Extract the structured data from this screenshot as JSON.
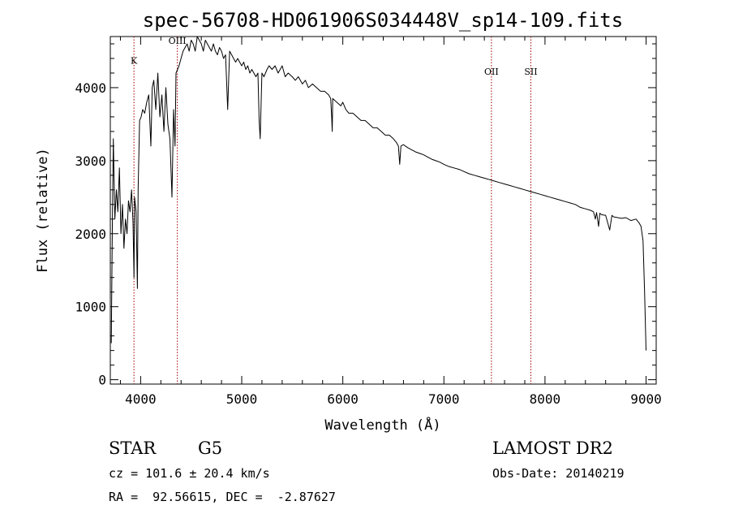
{
  "chart_data": {
    "type": "line",
    "title": "spec-56708-HD061906S034448V_sp14-109.fits",
    "xlabel": "Wavelength (Å)",
    "ylabel": "Flux (relative)",
    "xlim": [
      3700,
      9100
    ],
    "ylim": [
      -60,
      4700
    ],
    "x_ticks": [
      4000,
      5000,
      6000,
      7000,
      8000,
      9000
    ],
    "y_ticks": [
      0,
      1000,
      2000,
      3000,
      4000
    ],
    "grid": false,
    "lines": [
      {
        "label": "K",
        "x": 3934,
        "label_level": 4330
      },
      {
        "label": "OIII",
        "x": 4363,
        "label_level": 4600
      },
      {
        "label": "OII",
        "x": 7470,
        "label_level": 4180
      },
      {
        "label": "SII",
        "x": 7860,
        "label_level": 4180
      }
    ],
    "series": [
      {
        "x": [
          3710,
          3720,
          3730,
          3745,
          3760,
          3775,
          3790,
          3805,
          3820,
          3835,
          3850,
          3865,
          3880,
          3895,
          3910,
          3925,
          3934,
          3940,
          3955,
          3968,
          3975,
          3990,
          4005,
          4020,
          4040,
          4060,
          4080,
          4101,
          4115,
          4130,
          4150,
          4170,
          4190,
          4210,
          4230,
          4250,
          4270,
          4290,
          4310,
          4326,
          4340,
          4350,
          4365,
          4380,
          4400,
          4420,
          4440,
          4460,
          4480,
          4500,
          4520,
          4540,
          4560,
          4580,
          4600,
          4620,
          4640,
          4660,
          4680,
          4700,
          4720,
          4740,
          4760,
          4780,
          4800,
          4820,
          4840,
          4861,
          4880,
          4900,
          4920,
          4940,
          4960,
          4980,
          5000,
          5020,
          5040,
          5060,
          5080,
          5100,
          5120,
          5140,
          5160,
          5172,
          5183,
          5200,
          5220,
          5250,
          5270,
          5300,
          5330,
          5360,
          5400,
          5430,
          5460,
          5500,
          5530,
          5560,
          5600,
          5630,
          5660,
          5700,
          5740,
          5780,
          5820,
          5860,
          5880,
          5890,
          5895,
          5900,
          5940,
          5980,
          6000,
          6030,
          6060,
          6100,
          6140,
          6180,
          6220,
          6260,
          6300,
          6340,
          6380,
          6420,
          6460,
          6500,
          6530,
          6550,
          6563,
          6575,
          6600,
          6640,
          6680,
          6720,
          6760,
          6800,
          6840,
          6880,
          6920,
          6960,
          7000,
          7050,
          7100,
          7150,
          7200,
          7250,
          7300,
          7350,
          7400,
          7450,
          7500,
          7550,
          7600,
          7650,
          7700,
          7750,
          7800,
          7850,
          7900,
          7950,
          8000,
          8050,
          8100,
          8150,
          8200,
          8250,
          8300,
          8350,
          8400,
          8450,
          8480,
          8498,
          8510,
          8530,
          8542,
          8560,
          8600,
          8640,
          8662,
          8680,
          8720,
          8760,
          8800,
          8850,
          8900,
          8930,
          8950,
          8970,
          8985,
          9000
        ],
        "y": [
          500,
          2100,
          3300,
          2200,
          2600,
          2300,
          2900,
          2000,
          2400,
          1800,
          2200,
          2000,
          2450,
          2300,
          2600,
          2150,
          1400,
          2500,
          2300,
          1250,
          2600,
          3550,
          3600,
          3700,
          3650,
          3800,
          3900,
          3200,
          4000,
          4100,
          3700,
          4200,
          3600,
          3900,
          3400,
          4000,
          3500,
          3300,
          2500,
          3700,
          3200,
          4200,
          4250,
          4300,
          4400,
          4500,
          4550,
          4600,
          4500,
          4650,
          4600,
          4500,
          4700,
          4650,
          4600,
          4500,
          4650,
          4600,
          4550,
          4500,
          4600,
          4500,
          4450,
          4550,
          4500,
          4400,
          4450,
          3700,
          4500,
          4450,
          4400,
          4350,
          4400,
          4350,
          4300,
          4350,
          4250,
          4300,
          4200,
          4250,
          4200,
          4150,
          4200,
          3550,
          3300,
          4200,
          4150,
          4250,
          4300,
          4250,
          4300,
          4200,
          4300,
          4150,
          4200,
          4150,
          4100,
          4150,
          4050,
          4100,
          4000,
          4050,
          4000,
          3950,
          3950,
          3900,
          3850,
          3600,
          3400,
          3850,
          3800,
          3750,
          3800,
          3700,
          3650,
          3650,
          3600,
          3550,
          3550,
          3500,
          3450,
          3450,
          3400,
          3350,
          3350,
          3300,
          3250,
          3200,
          2950,
          3200,
          3220,
          3180,
          3150,
          3120,
          3100,
          3080,
          3050,
          3020,
          3000,
          2980,
          2950,
          2920,
          2900,
          2880,
          2850,
          2820,
          2800,
          2780,
          2760,
          2740,
          2720,
          2700,
          2680,
          2660,
          2640,
          2620,
          2600,
          2580,
          2560,
          2540,
          2520,
          2500,
          2480,
          2460,
          2440,
          2420,
          2400,
          2360,
          2340,
          2320,
          2300,
          2200,
          2290,
          2100,
          2280,
          2260,
          2250,
          2050,
          2250,
          2230,
          2220,
          2210,
          2220,
          2180,
          2200,
          2150,
          2100,
          1900,
          1200,
          400
        ]
      }
    ]
  },
  "info": {
    "object_class": "STAR",
    "subclass": "G5",
    "redshift_text": "cz = 101.6 ± 20.4 km/s",
    "coords_text": "RA =  92.56615, DEC =  -2.87627",
    "survey": "LAMOST DR2",
    "obs_date_text": "Obs-Date: 20140219"
  }
}
